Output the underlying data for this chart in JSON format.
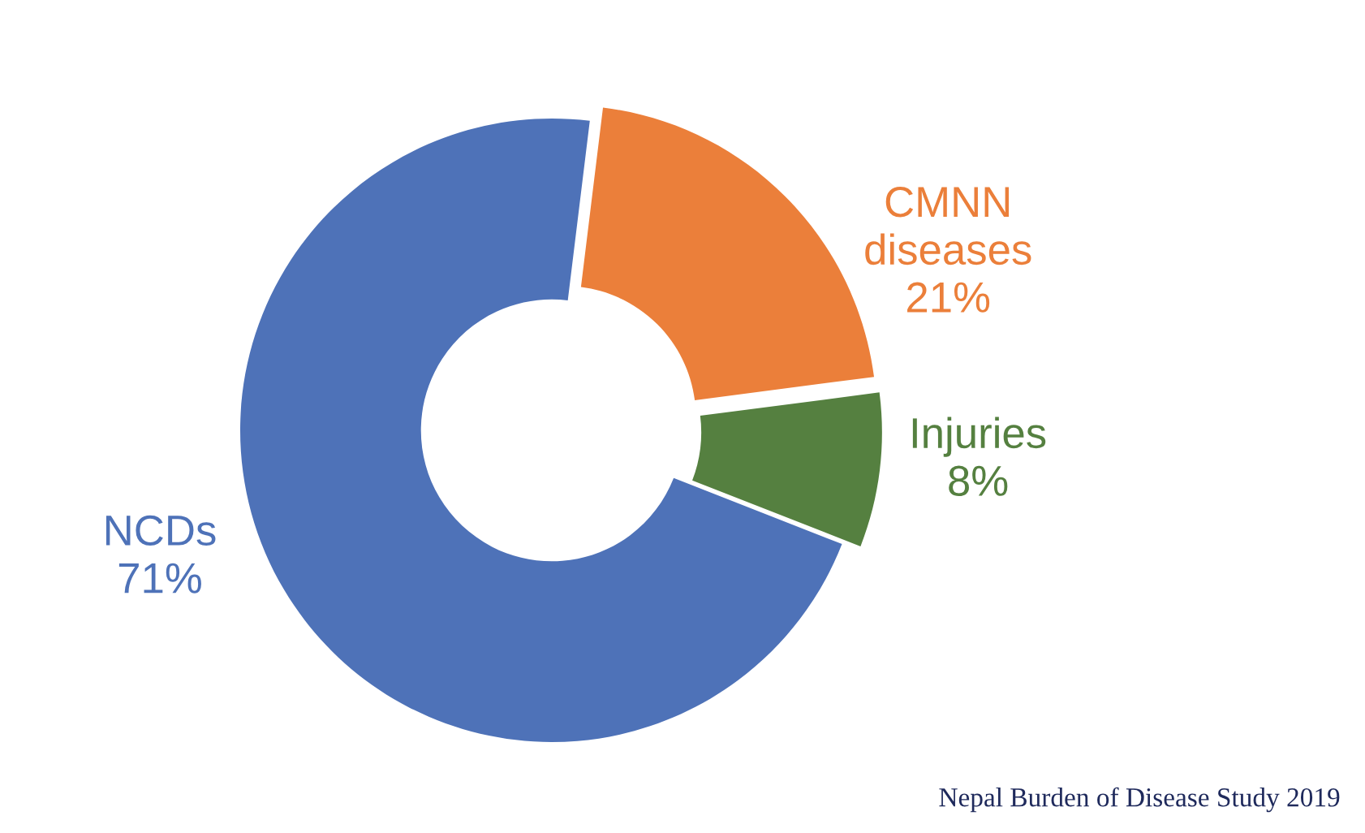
{
  "chart_data": {
    "type": "donut",
    "categories": [
      "CMNN\ndiseases",
      "Injuries",
      "NCDs"
    ],
    "values": [
      21,
      8,
      71
    ],
    "colors": [
      "#eb7f3a",
      "#558040",
      "#4e72b8"
    ],
    "value_labels": [
      "21%",
      "8%",
      "71%"
    ],
    "annotations": [
      "Nepal Burden of Disease Study 2019"
    ]
  }
}
